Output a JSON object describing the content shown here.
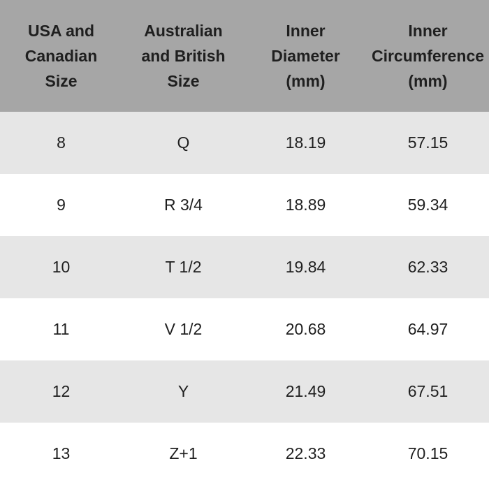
{
  "headers": [
    [
      "USA and",
      "Canadian",
      "Size"
    ],
    [
      "Australian",
      "and British",
      "Size"
    ],
    [
      "Inner",
      "Diameter",
      "(mm)"
    ],
    [
      "Inner",
      "Circumference",
      "(mm)"
    ]
  ],
  "rows": [
    [
      "8",
      "Q",
      "18.19",
      "57.15"
    ],
    [
      "9",
      "R 3/4",
      "18.89",
      "59.34"
    ],
    [
      "10",
      "T 1/2",
      "19.84",
      "62.33"
    ],
    [
      "11",
      "V 1/2",
      "20.68",
      "64.97"
    ],
    [
      "12",
      "Y",
      "21.49",
      "67.51"
    ],
    [
      "13",
      "Z+1",
      "22.33",
      "70.15"
    ]
  ]
}
